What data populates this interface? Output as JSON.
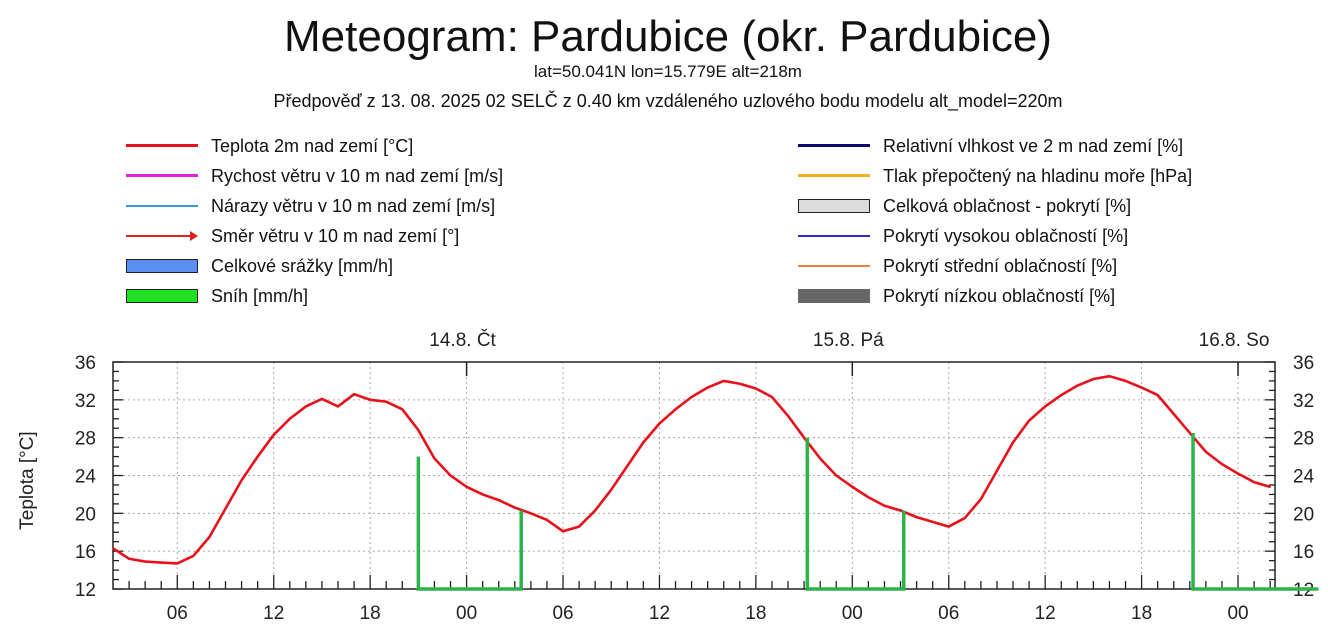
{
  "header": {
    "title": "Meteogram: Pardubice (okr. Pardubice)",
    "location": "lat=50.041N lon=15.779E alt=218m",
    "forecast_info": "Předpověď z 13. 08. 2025 02 SELČ z 0.40 km vzdáleného uzlového bodu modelu alt_model=220m"
  },
  "legend": {
    "left": [
      {
        "label": "Teplota 2m nad zemí [°C]",
        "type": "line",
        "color": "#e8101a"
      },
      {
        "label": "Rychost větru v 10 m nad zemí [m/s]",
        "type": "line",
        "color": "#e020e0"
      },
      {
        "label": "Nárazy větru v 10 m nad zemí [m/s]",
        "type": "thin",
        "color": "#3a9ad8"
      },
      {
        "label": "Směr větru v 10 m nad zemí [°]",
        "type": "arrow",
        "color": "#e02020"
      },
      {
        "label": "Celkové srážky [mm/h]",
        "type": "box",
        "color": "#5b8ef0"
      },
      {
        "label": "Sníh [mm/h]",
        "type": "box",
        "color": "#22e022"
      }
    ],
    "right": [
      {
        "label": "Relativní vlhkost ve 2 m nad zemí [%]",
        "type": "line",
        "color": "#0a0a6a"
      },
      {
        "label": "Tlak přepočtený na hladinu moře [hPa]",
        "type": "line",
        "color": "#f0b020"
      },
      {
        "label": "Celková oblačnost - pokrytí [%]",
        "type": "box",
        "color": "#dcdcdc"
      },
      {
        "label": "Pokrytí vysokou oblačností [%]",
        "type": "thin",
        "color": "#3030c0"
      },
      {
        "label": "Pokrytí střední oblačností [%]",
        "type": "thin",
        "color": "#f08040"
      },
      {
        "label": "Pokrytí nízkou oblačností [%]",
        "type": "solid",
        "color": "#666666"
      }
    ]
  },
  "chart_data": {
    "type": "line",
    "ylabel": "Teplota [°C]",
    "xlabel": "",
    "x_unit": "hours since 13.8. 02:00",
    "xlim": [
      0,
      72.3
    ],
    "ylim": [
      12,
      36
    ],
    "yticks": [
      12,
      16,
      20,
      24,
      28,
      32,
      36
    ],
    "ytick_labels": [
      "12",
      "16",
      "20",
      "24",
      "28",
      "32",
      "36"
    ],
    "xticks": [
      4,
      10,
      16,
      22,
      28,
      34,
      40,
      46,
      52,
      58,
      64,
      70
    ],
    "xtick_labels": [
      "06",
      "12",
      "18",
      "00",
      "06",
      "12",
      "18",
      "00",
      "06",
      "12",
      "18",
      "00"
    ],
    "day_labels": [
      {
        "x": 22,
        "label": "14.8. Čt"
      },
      {
        "x": 46,
        "label": "15.8. Pá"
      },
      {
        "x": 70,
        "label": "16.8. So"
      }
    ],
    "grid": true,
    "series": [
      {
        "name": "Teplota 2m nad zemí [°C]",
        "color": "#e8101a",
        "x": [
          0,
          1,
          2,
          3,
          4,
          5,
          6,
          7,
          8,
          9,
          10,
          11,
          12,
          13,
          14,
          15,
          16,
          17,
          18,
          19,
          20,
          21,
          22,
          23,
          24,
          25,
          26,
          27,
          28,
          29,
          30,
          31,
          32,
          33,
          34,
          35,
          36,
          37,
          38,
          39,
          40,
          41,
          42,
          43,
          44,
          45,
          46,
          47,
          48,
          49,
          50,
          51,
          52,
          53,
          54,
          55,
          56,
          57,
          58,
          59,
          60,
          61,
          62,
          63,
          64,
          65,
          66,
          67,
          68,
          69,
          70,
          71,
          72
        ],
        "values": [
          16.3,
          15.2,
          14.9,
          14.8,
          14.7,
          15.5,
          17.5,
          20.5,
          23.5,
          26,
          28.3,
          30,
          31.3,
          32.1,
          31.3,
          32.6,
          32.0,
          31.8,
          31.0,
          28.8,
          25.8,
          24.0,
          22.8,
          22.0,
          21.4,
          20.6,
          20.0,
          19.3,
          18.1,
          18.6,
          20.3,
          22.5,
          25,
          27.5,
          29.5,
          31.0,
          32.3,
          33.3,
          34.0,
          33.7,
          33.2,
          32.3,
          30.3,
          28.0,
          25.8,
          24.0,
          22.8,
          21.7,
          20.8,
          20.3,
          19.6,
          19.1,
          18.6,
          19.5,
          21.5,
          24.5,
          27.5,
          29.8,
          31.3,
          32.5,
          33.5,
          34.2,
          34.5,
          34.0,
          33.3,
          32.5,
          30.5,
          28.5,
          26.5,
          25.2,
          24.2,
          23.3,
          22.8
        ]
      },
      {
        "name": "Sníh [mm/h] outline",
        "color": "#2db34a",
        "segments": [
          [
            [
              19,
              26
            ],
            [
              19,
              12
            ],
            [
              25.4,
              12
            ],
            [
              25.4,
              20.3
            ]
          ],
          [
            [
              43.2,
              28
            ],
            [
              43.2,
              12
            ],
            [
              49.2,
              12
            ],
            [
              49.2,
              20.3
            ]
          ],
          [
            [
              67.2,
              28.5
            ],
            [
              67.2,
              12
            ],
            [
              75,
              12
            ]
          ]
        ]
      }
    ]
  }
}
